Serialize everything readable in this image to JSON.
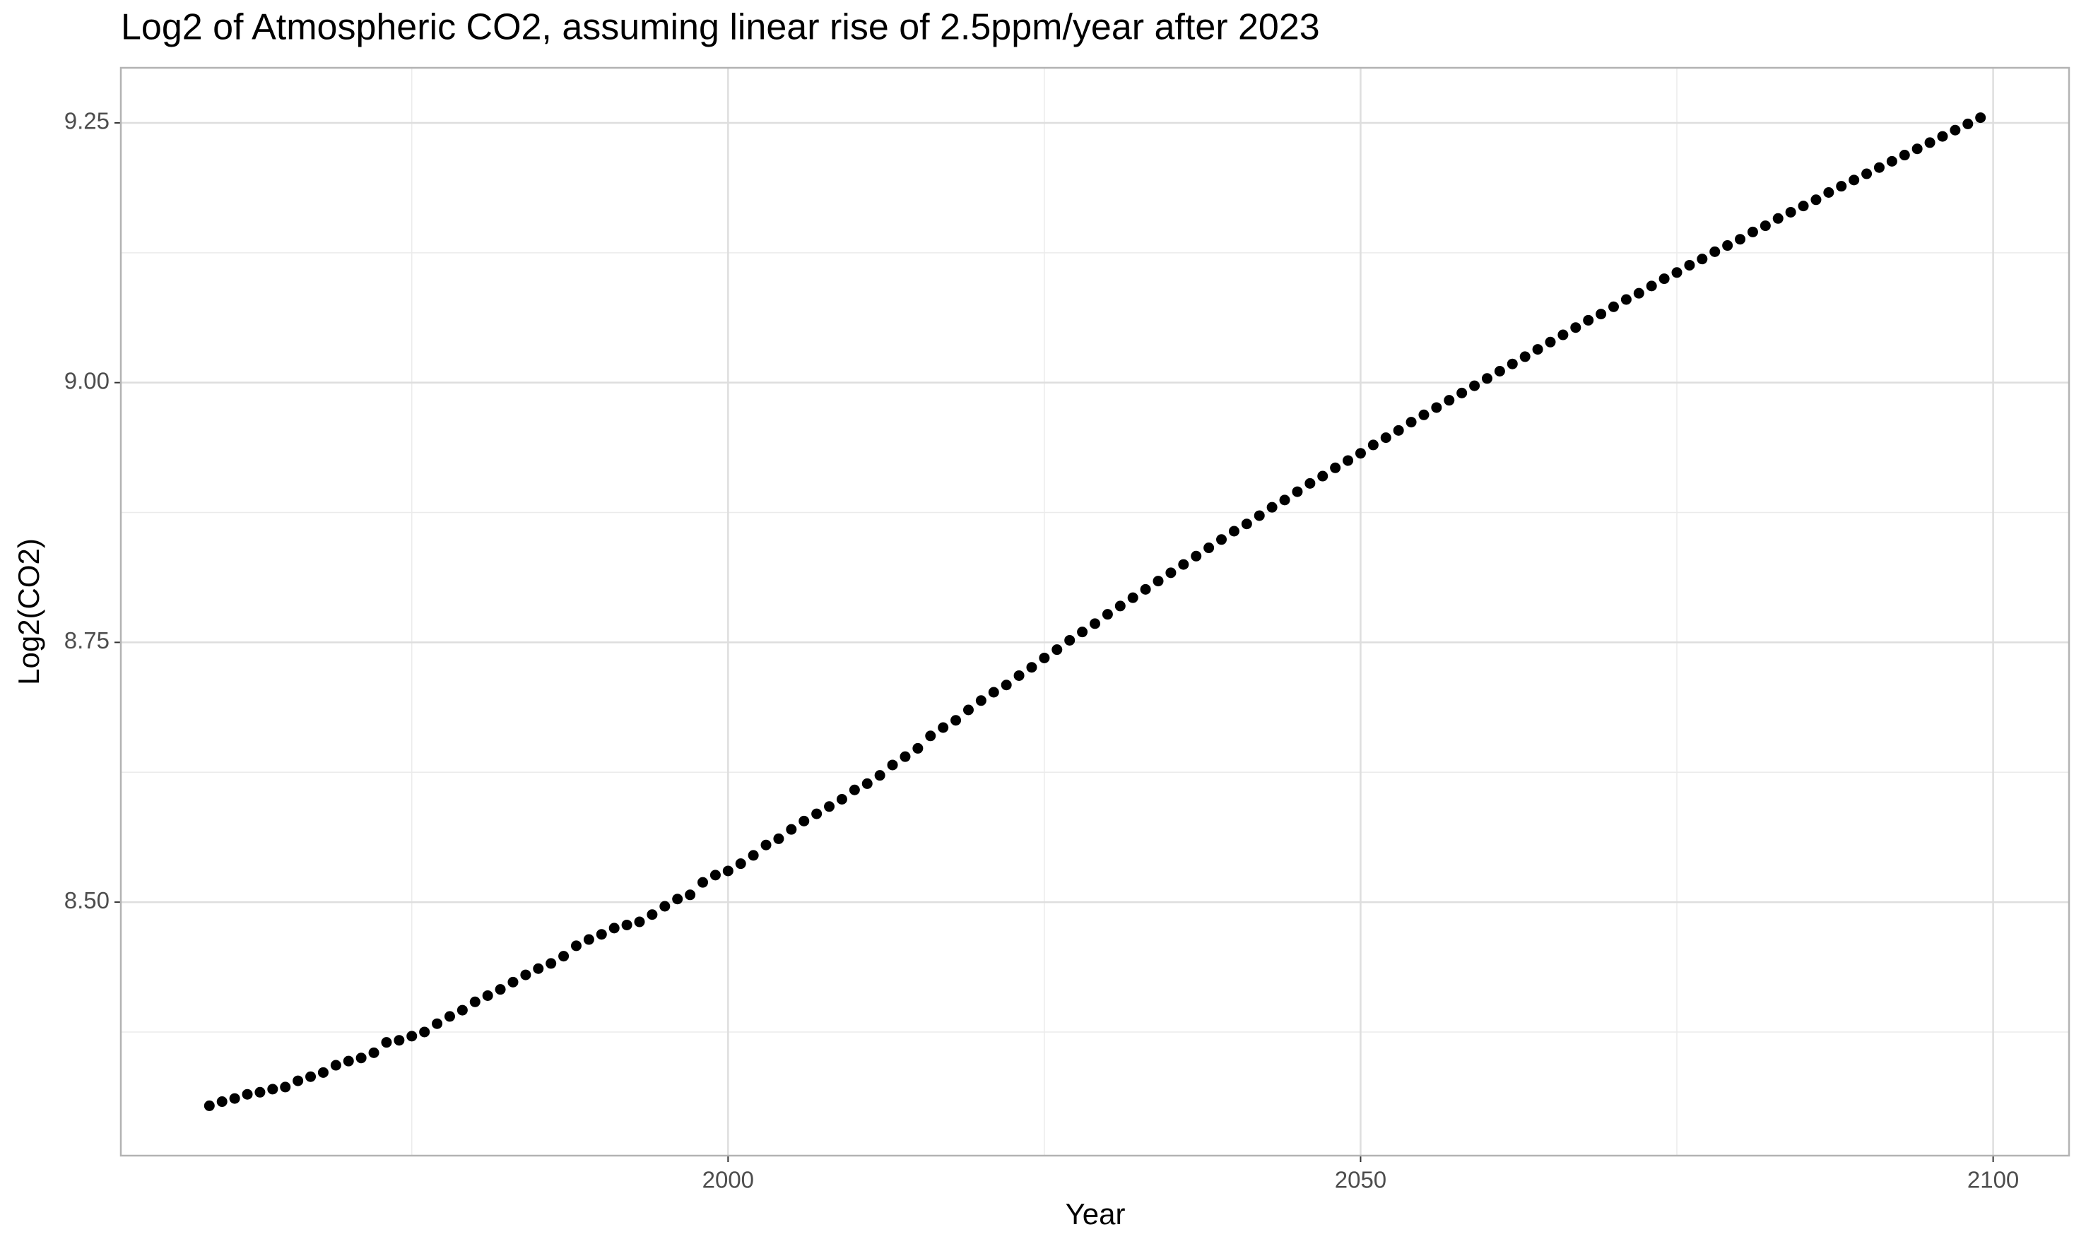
{
  "chart_data": {
    "type": "scatter",
    "title": "Log2 of Atmospheric CO2, assuming linear rise of 2.5ppm/year after 2023",
    "x_label": "Year",
    "y_label": "Log2(CO2)",
    "x": [
      1959,
      1960,
      1961,
      1962,
      1963,
      1964,
      1965,
      1966,
      1967,
      1968,
      1969,
      1970,
      1971,
      1972,
      1973,
      1974,
      1975,
      1976,
      1977,
      1978,
      1979,
      1980,
      1981,
      1982,
      1983,
      1984,
      1985,
      1986,
      1987,
      1988,
      1989,
      1990,
      1991,
      1992,
      1993,
      1994,
      1995,
      1996,
      1997,
      1998,
      1999,
      2000,
      2001,
      2002,
      2003,
      2004,
      2005,
      2006,
      2007,
      2008,
      2009,
      2010,
      2011,
      2012,
      2013,
      2014,
      2015,
      2016,
      2017,
      2018,
      2019,
      2020,
      2021,
      2022,
      2023,
      2024,
      2025,
      2026,
      2027,
      2028,
      2029,
      2030,
      2031,
      2032,
      2033,
      2034,
      2035,
      2036,
      2037,
      2038,
      2039,
      2040,
      2041,
      2042,
      2043,
      2044,
      2045,
      2046,
      2047,
      2048,
      2049,
      2050,
      2051,
      2052,
      2053,
      2054,
      2055,
      2056,
      2057,
      2058,
      2059,
      2060,
      2061,
      2062,
      2063,
      2064,
      2065,
      2066,
      2067,
      2068,
      2069,
      2070,
      2071,
      2072,
      2073,
      2074,
      2075,
      2076,
      2077,
      2078,
      2079,
      2080,
      2081,
      2082,
      2083,
      2084,
      2085,
      2086,
      2087,
      2088,
      2089,
      2090,
      2091,
      2092,
      2093,
      2094,
      2095,
      2096,
      2097,
      2098,
      2099
    ],
    "values": [
      8.304,
      8.308,
      8.311,
      8.315,
      8.317,
      8.32,
      8.322,
      8.328,
      8.332,
      8.336,
      8.343,
      8.347,
      8.35,
      8.355,
      8.365,
      8.367,
      8.371,
      8.375,
      8.383,
      8.39,
      8.396,
      8.404,
      8.41,
      8.416,
      8.423,
      8.43,
      8.436,
      8.441,
      8.448,
      8.458,
      8.464,
      8.469,
      8.475,
      8.478,
      8.481,
      8.488,
      8.496,
      8.503,
      8.507,
      8.519,
      8.526,
      8.53,
      8.537,
      8.545,
      8.555,
      8.561,
      8.57,
      8.578,
      8.585,
      8.592,
      8.599,
      8.608,
      8.614,
      8.622,
      8.632,
      8.64,
      8.648,
      8.66,
      8.668,
      8.675,
      8.685,
      8.694,
      8.702,
      8.709,
      8.718,
      8.726,
      8.735,
      8.743,
      8.752,
      8.76,
      8.768,
      8.777,
      8.785,
      8.793,
      8.801,
      8.809,
      8.817,
      8.825,
      8.833,
      8.841,
      8.849,
      8.857,
      8.864,
      8.872,
      8.88,
      8.887,
      8.895,
      8.903,
      8.91,
      8.918,
      8.925,
      8.932,
      8.94,
      8.947,
      8.954,
      8.962,
      8.969,
      8.976,
      8.983,
      8.99,
      8.997,
      9.004,
      9.011,
      9.018,
      9.025,
      9.032,
      9.039,
      9.046,
      9.053,
      9.06,
      9.066,
      9.073,
      9.08,
      9.086,
      9.093,
      9.1,
      9.106,
      9.113,
      9.119,
      9.126,
      9.132,
      9.138,
      9.145,
      9.151,
      9.158,
      9.164,
      9.17,
      9.176,
      9.183,
      9.189,
      9.195,
      9.201,
      9.207,
      9.213,
      9.219,
      9.225,
      9.231,
      9.237,
      9.243,
      9.249,
      9.255
    ],
    "color": "#000000",
    "xlim": [
      1952,
      2106
    ],
    "ylim": [
      8.256,
      9.303
    ],
    "xticks": [
      2000,
      2050,
      2100
    ],
    "yticks": [
      {
        "value": 8.5,
        "label": "8.50"
      },
      8.75,
      {
        "value": 9,
        "label": "9.00"
      },
      9.25
    ],
    "x_minor_ticks": [
      1975,
      2025,
      2075
    ],
    "y_minor_ticks": [
      8.375,
      8.625,
      8.875,
      9.125
    ],
    "grid": true
  }
}
